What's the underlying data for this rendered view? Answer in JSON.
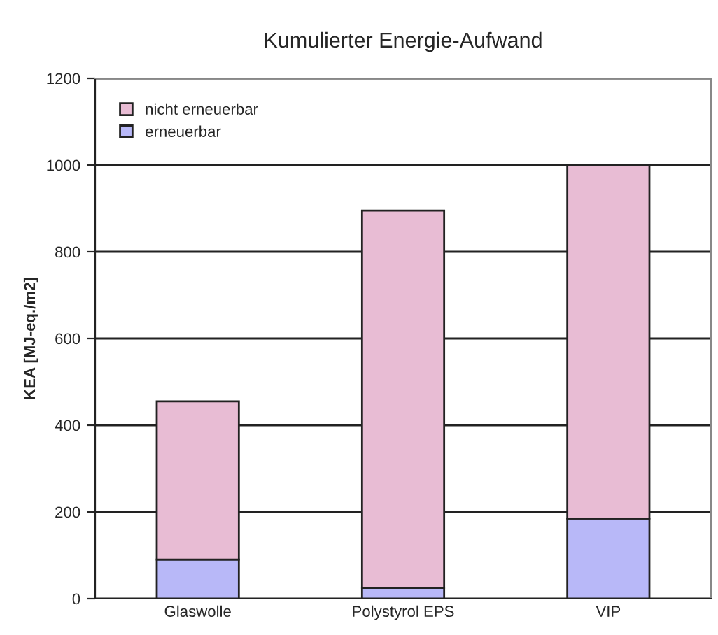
{
  "chart_data": {
    "type": "bar",
    "title": "Kumulierter Energie-Aufwand",
    "ylabel": "KEA [MJ-eq./m2]",
    "categories": [
      "Glaswolle",
      "Polystyrol EPS",
      "VIP"
    ],
    "stacked": true,
    "series": [
      {
        "name": "erneuerbar",
        "color": "#b8b8f8",
        "values": [
          90,
          25,
          185
        ]
      },
      {
        "name": "nicht erneuerbar",
        "color": "#e8bcd4",
        "values": [
          365,
          870,
          815
        ]
      }
    ],
    "ylim": [
      0,
      1200
    ],
    "yticks": [
      0,
      200,
      400,
      600,
      800,
      1000,
      1200
    ],
    "grid": "y",
    "legend": "top left"
  }
}
